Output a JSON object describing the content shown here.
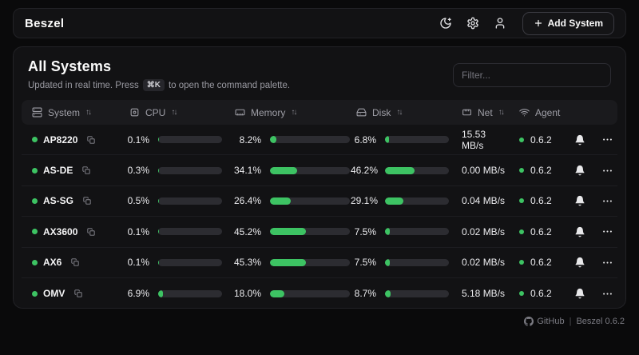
{
  "colors": {
    "accent_green": "#3dc363",
    "bar_track": "#2c2c31",
    "card_bg": "#121214",
    "page_bg": "#0a0a0b"
  },
  "header": {
    "brand": "Beszel",
    "icons": [
      "moon-theme-icon",
      "gear-settings-icon",
      "user-icon"
    ],
    "add_system_label": "Add System",
    "add_system_plus": "+"
  },
  "page": {
    "title": "All Systems",
    "subtitle_prefix": "Updated in real time. Press",
    "subtitle_kbd": "⌘K",
    "subtitle_suffix": "to open the command palette.",
    "filter_placeholder": "Filter..."
  },
  "table": {
    "sort_indicator": "↑↓",
    "columns": [
      {
        "label": "System",
        "icon": "server-icon",
        "sortable": true
      },
      {
        "label": "CPU",
        "icon": "cpu-icon",
        "sortable": true
      },
      {
        "label": "Memory",
        "icon": "memory-stick-icon",
        "sortable": true
      },
      {
        "label": "Disk",
        "icon": "hard-drive-icon",
        "sortable": true
      },
      {
        "label": "Net",
        "icon": "ethernet-icon",
        "sortable": true
      },
      {
        "label": "Agent",
        "icon": "wifi-icon",
        "sortable": false
      }
    ],
    "rows": [
      {
        "name": "AP8220",
        "status": "up",
        "cpu_label": "0.1%",
        "cpu_pct": 0.1,
        "mem_label": "8.2%",
        "mem_pct": 8.2,
        "disk_label": "6.8%",
        "disk_pct": 6.8,
        "net": "15.53 MB/s",
        "agent": "0.6.2"
      },
      {
        "name": "AS-DE",
        "status": "up",
        "cpu_label": "0.3%",
        "cpu_pct": 0.3,
        "mem_label": "34.1%",
        "mem_pct": 34.1,
        "disk_label": "46.2%",
        "disk_pct": 46.2,
        "net": "0.00 MB/s",
        "agent": "0.6.2"
      },
      {
        "name": "AS-SG",
        "status": "up",
        "cpu_label": "0.5%",
        "cpu_pct": 0.5,
        "mem_label": "26.4%",
        "mem_pct": 26.4,
        "disk_label": "29.1%",
        "disk_pct": 29.1,
        "net": "0.04 MB/s",
        "agent": "0.6.2"
      },
      {
        "name": "AX3600",
        "status": "up",
        "cpu_label": "0.1%",
        "cpu_pct": 0.1,
        "mem_label": "45.2%",
        "mem_pct": 45.2,
        "disk_label": "7.5%",
        "disk_pct": 7.5,
        "net": "0.02 MB/s",
        "agent": "0.6.2"
      },
      {
        "name": "AX6",
        "status": "up",
        "cpu_label": "0.1%",
        "cpu_pct": 0.1,
        "mem_label": "45.3%",
        "mem_pct": 45.3,
        "disk_label": "7.5%",
        "disk_pct": 7.5,
        "net": "0.02 MB/s",
        "agent": "0.6.2"
      },
      {
        "name": "OMV",
        "status": "up",
        "cpu_label": "6.9%",
        "cpu_pct": 6.9,
        "mem_label": "18.0%",
        "mem_pct": 18.0,
        "disk_label": "8.7%",
        "disk_pct": 8.7,
        "net": "5.18 MB/s",
        "agent": "0.6.2"
      }
    ]
  },
  "footer": {
    "github_label": "GitHub",
    "separator": "|",
    "version": "Beszel 0.6.2"
  }
}
